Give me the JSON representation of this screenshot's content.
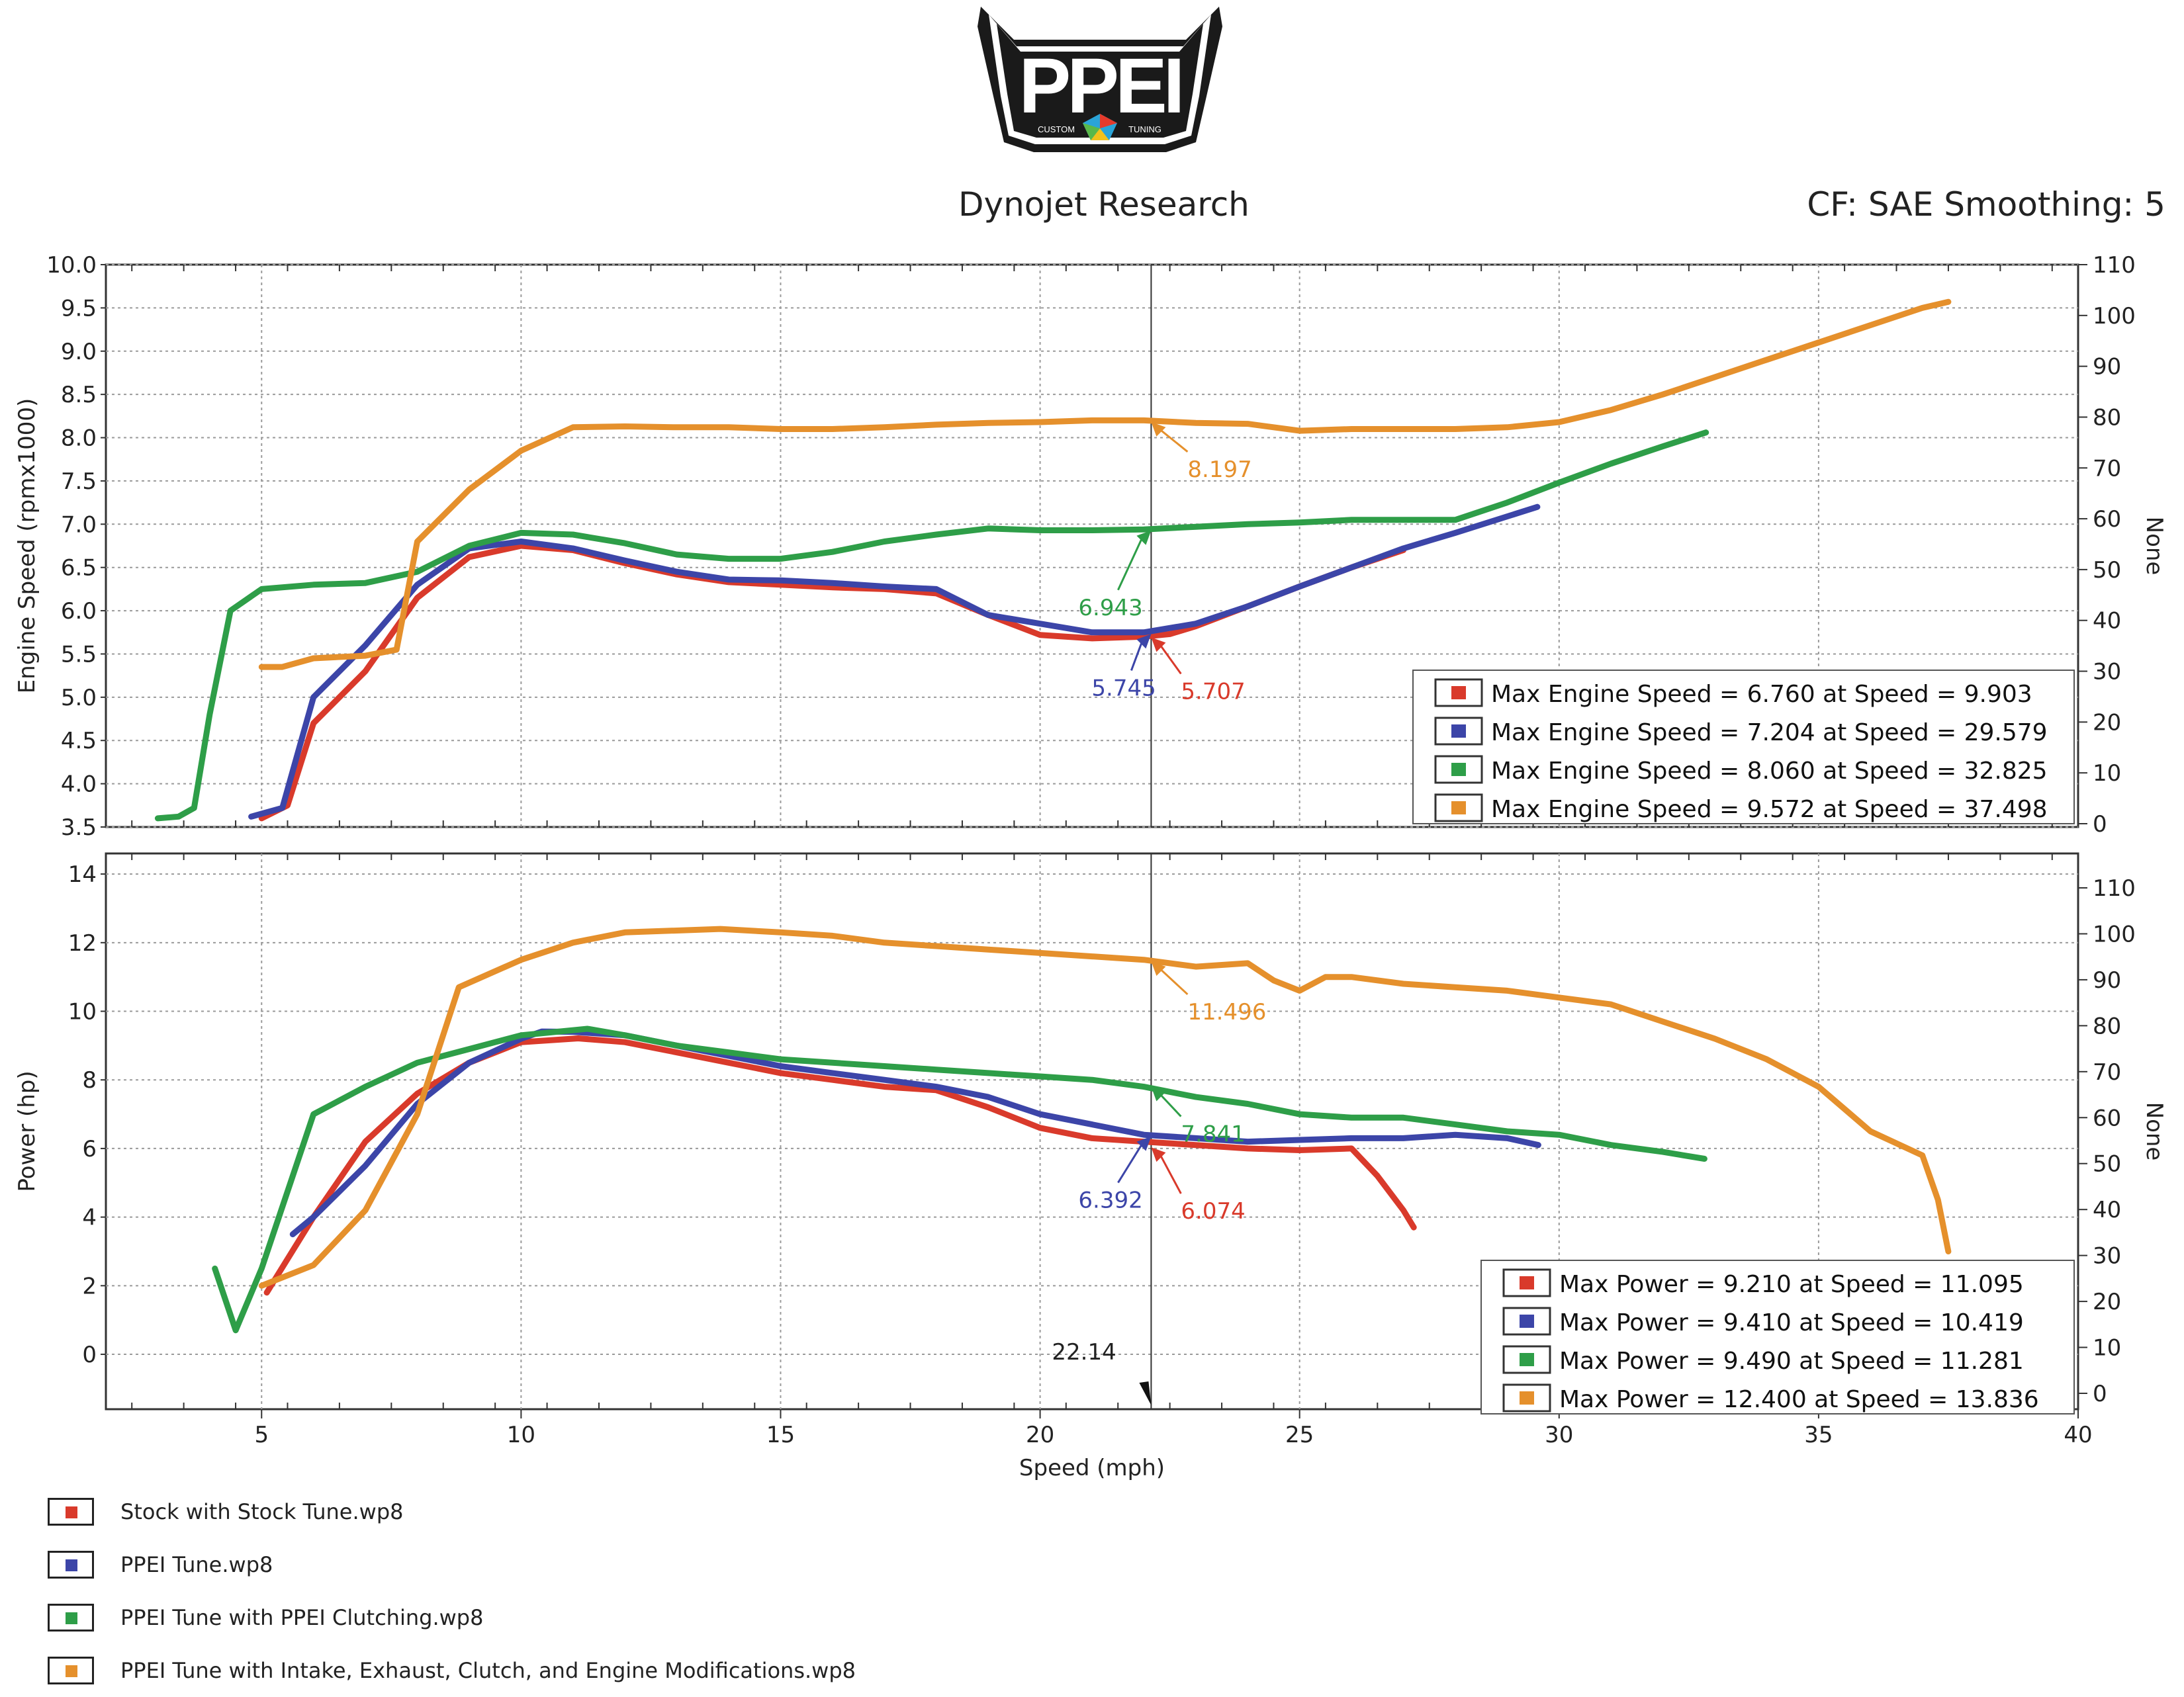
{
  "header": {
    "title": "Dynojet Research",
    "cf_text": "CF: SAE Smoothing: 5"
  },
  "logo": {
    "text": "PPEI",
    "left_text": "CUSTOM",
    "right_text": "TUNING"
  },
  "colors": {
    "red": "#d93a2b",
    "blue": "#3c45a8",
    "green": "#2e9e48",
    "orange": "#e5902c",
    "grid": "#9a9a9a",
    "frame": "#333333"
  },
  "legend": [
    {
      "label": "Stock with Stock Tune.wp8",
      "color": "#d93a2b"
    },
    {
      "label": "PPEI Tune.wp8",
      "color": "#3c45a8"
    },
    {
      "label": "PPEI Tune with PPEI Clutching.wp8",
      "color": "#2e9e48"
    },
    {
      "label": "PPEI Tune with Intake, Exhaust, Clutch, and Engine Modifications.wp8",
      "color": "#e5902c"
    }
  ],
  "chart_data": [
    {
      "type": "line",
      "ylabel": "Engine Speed (rpmx1000)",
      "y2label": "None",
      "ylim": [
        3.5,
        10.0
      ],
      "y2lim": [
        0,
        110
      ],
      "xlim": [
        2,
        40
      ],
      "yticks": [
        "3.5",
        "4.0",
        "4.5",
        "5.0",
        "5.5",
        "6.0",
        "6.5",
        "7.0",
        "7.5",
        "8.0",
        "8.5",
        "9.0",
        "9.5",
        "10.0"
      ],
      "y2ticks": [
        "0",
        "10",
        "20",
        "30",
        "40",
        "50",
        "60",
        "70",
        "80",
        "90",
        "100",
        "110"
      ],
      "grid": true,
      "cursor_x": 22.14,
      "series": [
        {
          "name": "Stock with Stock Tune.wp8",
          "color": "#d93a2b",
          "x": [
            5.0,
            5.5,
            6.0,
            7.0,
            8.0,
            9.0,
            10.0,
            11.0,
            12.0,
            13.0,
            14.0,
            15.0,
            16.0,
            17.0,
            18.0,
            19.0,
            20.0,
            21.0,
            22.0,
            22.5,
            23.0,
            24.0,
            25.0,
            26.0,
            27.0
          ],
          "y": [
            3.6,
            3.75,
            4.7,
            5.3,
            6.15,
            6.62,
            6.75,
            6.7,
            6.55,
            6.42,
            6.33,
            6.3,
            6.27,
            6.25,
            6.2,
            5.95,
            5.72,
            5.68,
            5.7,
            5.73,
            5.82,
            6.05,
            6.28,
            6.5,
            6.7
          ]
        },
        {
          "name": "PPEI Tune.wp8",
          "color": "#3c45a8",
          "x": [
            4.8,
            5.4,
            6.0,
            7.0,
            8.0,
            9.0,
            10.0,
            11.0,
            12.0,
            13.0,
            14.0,
            15.0,
            16.0,
            17.0,
            18.0,
            19.0,
            20.0,
            21.0,
            22.0,
            23.0,
            24.0,
            25.0,
            26.0,
            27.0,
            28.0,
            29.58
          ],
          "y": [
            3.62,
            3.72,
            5.0,
            5.6,
            6.3,
            6.72,
            6.8,
            6.72,
            6.58,
            6.45,
            6.36,
            6.35,
            6.32,
            6.28,
            6.25,
            5.95,
            5.85,
            5.75,
            5.75,
            5.85,
            6.05,
            6.28,
            6.5,
            6.72,
            6.9,
            7.2
          ]
        },
        {
          "name": "PPEI Tune with PPEI Clutching.wp8",
          "color": "#2e9e48",
          "x": [
            3.0,
            3.4,
            3.7,
            4.0,
            4.4,
            5.0,
            6.0,
            7.0,
            8.0,
            9.0,
            10.0,
            11.0,
            12.0,
            13.0,
            14.0,
            15.0,
            16.0,
            17.0,
            18.0,
            19.0,
            20.0,
            21.0,
            22.0,
            23.0,
            24.0,
            25.0,
            26.0,
            27.0,
            28.0,
            29.0,
            30.0,
            31.0,
            32.0,
            32.83
          ],
          "y": [
            3.6,
            3.62,
            3.72,
            4.8,
            6.0,
            6.25,
            6.3,
            6.32,
            6.45,
            6.75,
            6.9,
            6.88,
            6.78,
            6.65,
            6.6,
            6.6,
            6.68,
            6.8,
            6.88,
            6.95,
            6.93,
            6.93,
            6.94,
            6.97,
            7.0,
            7.02,
            7.05,
            7.05,
            7.05,
            7.25,
            7.48,
            7.7,
            7.9,
            8.06
          ]
        },
        {
          "name": "PPEI Tune with Intake, Exhaust, Clutch, and Engine Modifications.wp8",
          "color": "#e5902c",
          "x": [
            5.0,
            5.4,
            6.0,
            7.0,
            7.6,
            8.0,
            9.0,
            10.0,
            11.0,
            12.0,
            13.0,
            14.0,
            15.0,
            16.0,
            17.0,
            18.0,
            19.0,
            20.0,
            21.0,
            22.0,
            23.0,
            24.0,
            25.0,
            26.0,
            27.0,
            28.0,
            29.0,
            30.0,
            31.0,
            32.0,
            33.0,
            34.0,
            35.0,
            36.0,
            37.0,
            37.5
          ],
          "y": [
            5.35,
            5.35,
            5.45,
            5.48,
            5.55,
            6.8,
            7.4,
            7.85,
            8.12,
            8.13,
            8.12,
            8.12,
            8.1,
            8.1,
            8.12,
            8.15,
            8.17,
            8.18,
            8.2,
            8.2,
            8.17,
            8.16,
            8.08,
            8.1,
            8.1,
            8.1,
            8.12,
            8.18,
            8.32,
            8.5,
            8.7,
            8.9,
            9.1,
            9.3,
            9.5,
            9.57
          ]
        }
      ],
      "annotations": [
        {
          "text": "8.197",
          "x": 22.14,
          "y": 8.197,
          "color": "#e5902c"
        },
        {
          "text": "6.943",
          "x": 22.14,
          "y": 6.943,
          "color": "#2e9e48"
        },
        {
          "text": "5.745",
          "x": 22.14,
          "y": 5.745,
          "color": "#3c45a8"
        },
        {
          "text": "5.707",
          "x": 22.14,
          "y": 5.707,
          "color": "#d93a2b"
        }
      ],
      "summary": [
        {
          "text": "Max Engine Speed = 6.760 at Speed = 9.903",
          "color": "#d93a2b"
        },
        {
          "text": "Max Engine Speed = 7.204 at Speed = 29.579",
          "color": "#3c45a8"
        },
        {
          "text": "Max Engine Speed = 8.060 at Speed = 32.825",
          "color": "#2e9e48"
        },
        {
          "text": "Max Engine Speed = 9.572 at Speed = 37.498",
          "color": "#e5902c"
        }
      ]
    },
    {
      "type": "line",
      "ylabel": "Power (hp)",
      "y2label": "None",
      "xlabel": "Speed (mph)",
      "ylim": [
        -1.6,
        14.6
      ],
      "y2lim": [
        0,
        110
      ],
      "xlim": [
        2,
        40
      ],
      "xticks": [
        "5",
        "10",
        "15",
        "20",
        "25",
        "30",
        "35",
        "40"
      ],
      "yticks": [
        "0",
        "2",
        "4",
        "6",
        "8",
        "10",
        "12",
        "14"
      ],
      "y2ticks": [
        "0",
        "10",
        "20",
        "30",
        "40",
        "50",
        "60",
        "70",
        "80",
        "90",
        "100",
        "110"
      ],
      "grid": true,
      "cursor_x": 22.14,
      "cursor_label": "22.14",
      "series": [
        {
          "name": "Stock with Stock Tune.wp8",
          "color": "#d93a2b",
          "x": [
            5.1,
            6.0,
            7.0,
            8.0,
            9.0,
            10.0,
            11.1,
            12.0,
            13.0,
            14.0,
            15.0,
            16.0,
            17.0,
            18.0,
            19.0,
            20.0,
            21.0,
            22.0,
            23.0,
            24.0,
            25.0,
            26.0,
            26.5,
            27.0,
            27.2
          ],
          "y": [
            1.8,
            4.0,
            6.2,
            7.6,
            8.5,
            9.1,
            9.21,
            9.1,
            8.8,
            8.5,
            8.2,
            8.0,
            7.8,
            7.7,
            7.2,
            6.6,
            6.3,
            6.2,
            6.1,
            6.0,
            5.95,
            6.0,
            5.2,
            4.2,
            3.7
          ]
        },
        {
          "name": "PPEI Tune.wp8",
          "color": "#3c45a8",
          "x": [
            5.6,
            6.0,
            7.0,
            8.0,
            9.0,
            10.0,
            10.4,
            11.0,
            12.0,
            13.0,
            14.0,
            15.0,
            16.0,
            17.0,
            18.0,
            19.0,
            20.0,
            21.0,
            22.0,
            23.0,
            24.0,
            25.0,
            26.0,
            27.0,
            28.0,
            29.0,
            29.6
          ],
          "y": [
            3.5,
            4.0,
            5.5,
            7.3,
            8.5,
            9.2,
            9.41,
            9.4,
            9.3,
            9.0,
            8.7,
            8.4,
            8.2,
            8.0,
            7.8,
            7.5,
            7.0,
            6.7,
            6.4,
            6.3,
            6.2,
            6.25,
            6.3,
            6.3,
            6.4,
            6.3,
            6.1
          ]
        },
        {
          "name": "PPEI Tune with PPEI Clutching.wp8",
          "color": "#2e9e48",
          "x": [
            4.1,
            4.5,
            5.0,
            6.0,
            7.0,
            8.0,
            9.0,
            10.0,
            11.28,
            12.0,
            13.0,
            14.0,
            15.0,
            16.0,
            17.0,
            18.0,
            19.0,
            20.0,
            21.0,
            22.0,
            23.0,
            24.0,
            25.0,
            26.0,
            27.0,
            28.0,
            29.0,
            30.0,
            31.0,
            32.0,
            32.8
          ],
          "y": [
            2.5,
            0.7,
            2.5,
            7.0,
            7.8,
            8.5,
            8.9,
            9.3,
            9.49,
            9.3,
            9.0,
            8.8,
            8.6,
            8.5,
            8.4,
            8.3,
            8.2,
            8.1,
            8.0,
            7.8,
            7.5,
            7.3,
            7.0,
            6.9,
            6.9,
            6.7,
            6.5,
            6.4,
            6.1,
            5.9,
            5.7
          ]
        },
        {
          "name": "PPEI Tune with Intake, Exhaust, Clutch, and Engine Modifications.wp8",
          "color": "#e5902c",
          "x": [
            5.0,
            6.0,
            7.0,
            8.0,
            8.8,
            10.0,
            11.0,
            12.0,
            13.84,
            15.0,
            16.0,
            17.0,
            18.0,
            19.0,
            20.0,
            21.0,
            22.0,
            23.0,
            24.0,
            24.5,
            25.0,
            25.5,
            26.0,
            27.0,
            28.0,
            29.0,
            30.0,
            31.0,
            32.0,
            33.0,
            34.0,
            35.0,
            36.0,
            37.0,
            37.3,
            37.5
          ],
          "y": [
            2.0,
            2.6,
            4.2,
            7.0,
            10.7,
            11.5,
            12.0,
            12.3,
            12.4,
            12.3,
            12.2,
            12.0,
            11.9,
            11.8,
            11.7,
            11.6,
            11.5,
            11.3,
            11.4,
            10.9,
            10.6,
            11.0,
            11.0,
            10.8,
            10.7,
            10.6,
            10.4,
            10.2,
            9.7,
            9.2,
            8.6,
            7.8,
            6.5,
            5.8,
            4.5,
            3.0
          ]
        }
      ],
      "annotations": [
        {
          "text": "11.496",
          "x": 22.14,
          "y": 11.496,
          "color": "#e5902c"
        },
        {
          "text": "7.841",
          "x": 22.14,
          "y": 7.841,
          "color": "#2e9e48"
        },
        {
          "text": "6.392",
          "x": 22.14,
          "y": 6.392,
          "color": "#3c45a8"
        },
        {
          "text": "6.074",
          "x": 22.14,
          "y": 6.074,
          "color": "#d93a2b"
        }
      ],
      "summary": [
        {
          "text": "Max Power = 9.210 at Speed = 11.095",
          "color": "#d93a2b"
        },
        {
          "text": "Max Power = 9.410 at Speed = 10.419",
          "color": "#3c45a8"
        },
        {
          "text": "Max Power = 9.490 at Speed = 11.281",
          "color": "#2e9e48"
        },
        {
          "text": "Max Power = 12.400 at Speed = 13.836",
          "color": "#e5902c"
        }
      ]
    }
  ]
}
